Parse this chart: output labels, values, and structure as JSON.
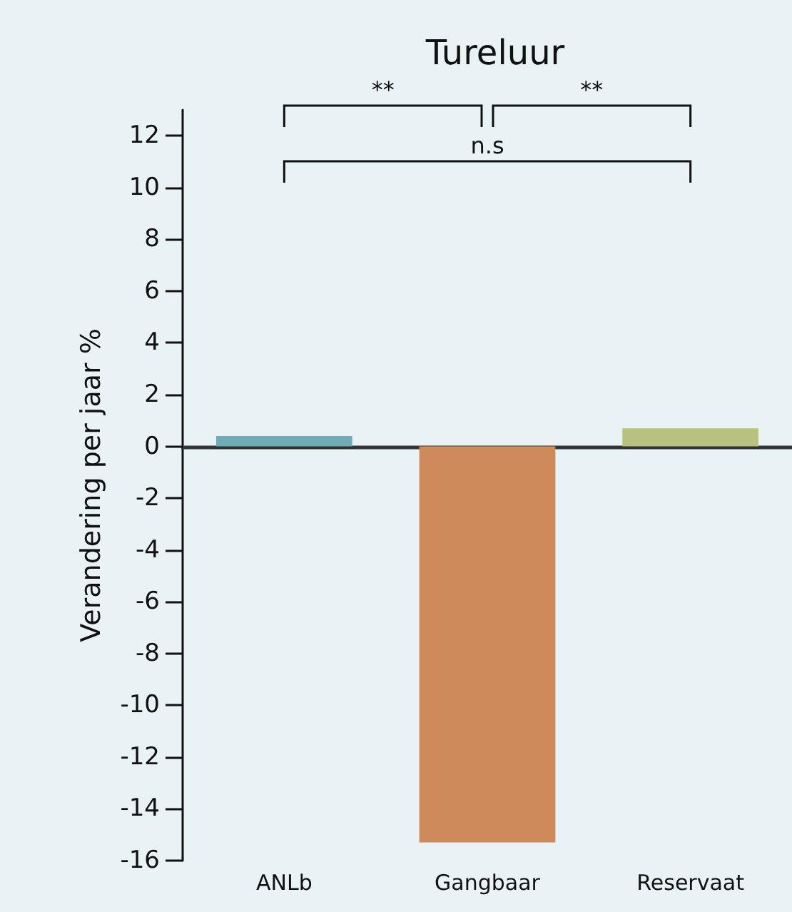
{
  "chart_data": {
    "type": "bar",
    "title": "Tureluur",
    "ylabel": "Verandering per jaar %",
    "categories": [
      "ANLb",
      "Gangbaar",
      "Reservaat"
    ],
    "values": [
      0.4,
      -15.3,
      0.7
    ],
    "colors": [
      "#6fadb6",
      "#cf8a5c",
      "#b8c17e"
    ],
    "ylim": [
      -16,
      13
    ],
    "yticks": [
      -16,
      -14,
      -12,
      -10,
      -8,
      -6,
      -4,
      -2,
      0,
      2,
      4,
      6,
      8,
      10,
      12
    ],
    "annotations": [
      "**",
      "**",
      "n.s"
    ]
  }
}
